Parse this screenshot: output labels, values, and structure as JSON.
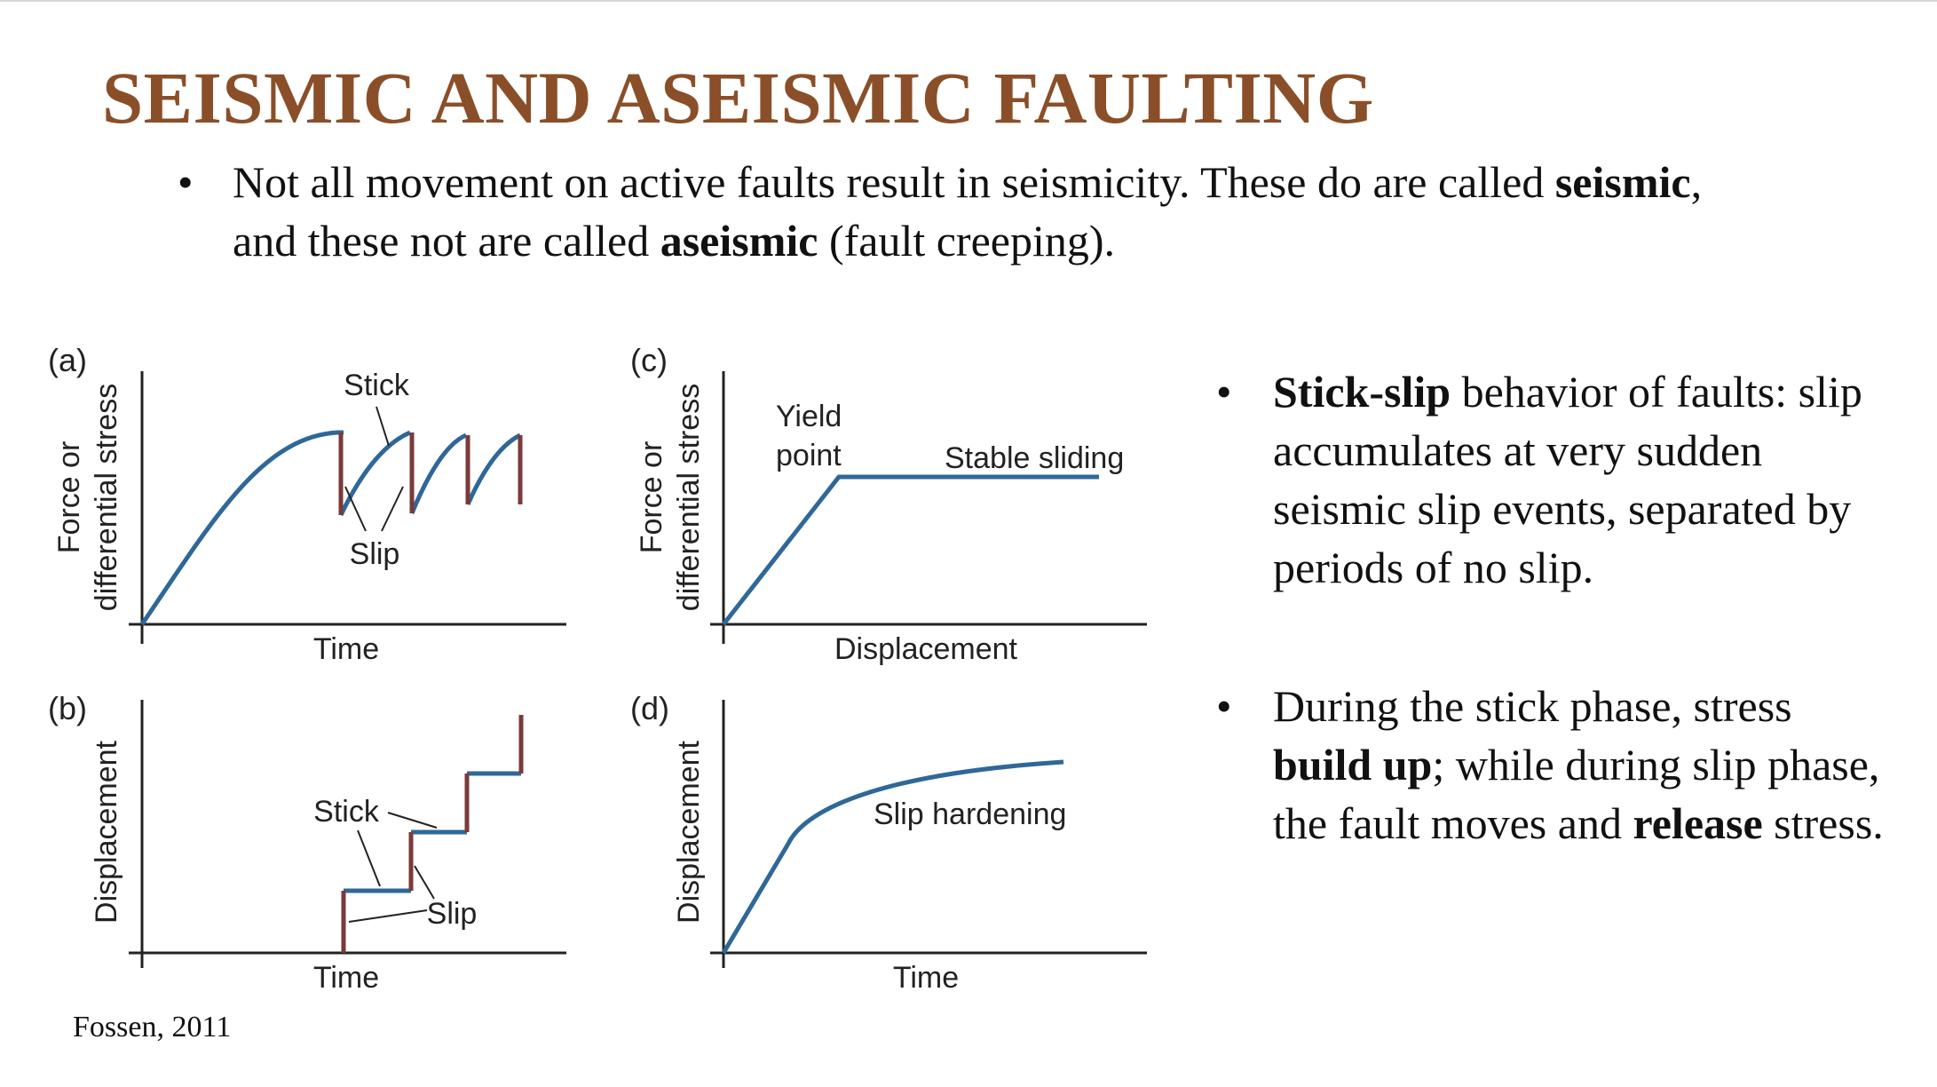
{
  "slide": {
    "title": "SEISMIC AND ASEISMIC FAULTING",
    "bullet_main": {
      "p1": "Not all movement on active faults result in seismicity. These do are called ",
      "b1": "seismic",
      "p2": ",",
      "line2_p1": "and these not are called ",
      "b2": "aseismic",
      "line2_p2": " (fault creeping)."
    },
    "bullet_dot": "•",
    "right_bullets": [
      {
        "b1": "Stick-slip",
        "p1": " behavior of faults: slip accumulates at very sudden seismic slip events, separated by periods of no slip."
      },
      {
        "p1": "During the stick phase, stress ",
        "b1": "build up",
        "p2": "; while during slip phase, the fault moves and ",
        "b2": "release",
        "p3": " stress."
      }
    ],
    "citation": "Fossen, 2011"
  },
  "figure": {
    "colors": {
      "curve": "#2f6898",
      "slip": "#7b3a3a",
      "axis": "#222222"
    },
    "panels": {
      "a": {
        "tag": "(a)",
        "ylabel_1": "Force or",
        "ylabel_2": "differential stress",
        "xlabel": "Time",
        "note_stick": "Stick",
        "note_slip": "Slip"
      },
      "b": {
        "tag": "(b)",
        "ylabel": "Displacement",
        "xlabel": "Time",
        "note_stick": "Stick",
        "note_slip": "Slip"
      },
      "c": {
        "tag": "(c)",
        "ylabel_1": "Force or",
        "ylabel_2": "differential stress",
        "xlabel": "Displacement",
        "note_yield_1": "Yield",
        "note_yield_2": "point",
        "note_stable": "Stable sliding"
      },
      "d": {
        "tag": "(d)",
        "ylabel": "Displacement",
        "xlabel": "Time",
        "note_hardening": "Slip hardening"
      }
    }
  }
}
